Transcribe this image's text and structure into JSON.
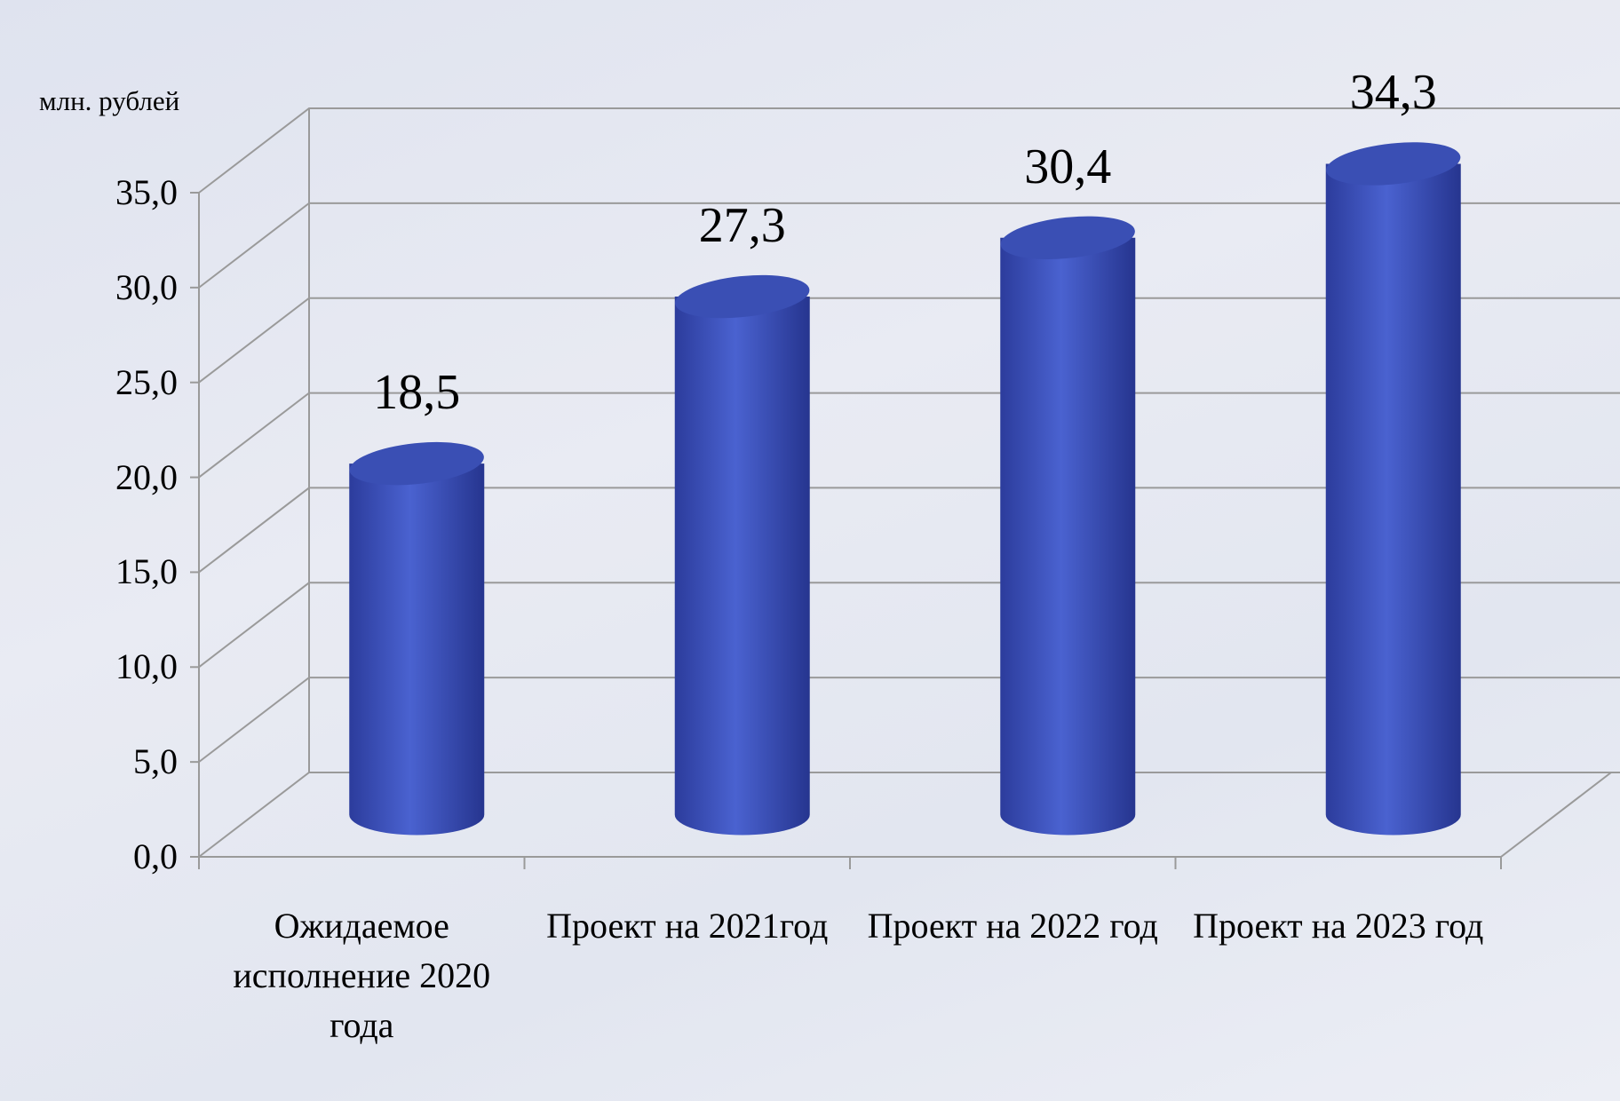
{
  "chart_data": {
    "type": "bar3d",
    "unit_label": "млн. рублей",
    "categories": [
      "Ожидаемое исполнение 2020 года",
      "Проект на 2021год",
      "Проект на 2022 год",
      "Проект на 2023 год"
    ],
    "values": [
      18.5,
      27.3,
      30.4,
      34.3
    ],
    "value_labels": [
      "18,5",
      "27,3",
      "30,4",
      "34,3"
    ],
    "color": "#4a62d0",
    "ylim": [
      0,
      35
    ],
    "yticks": [
      {
        "value": 0,
        "label": "0,0"
      },
      {
        "value": 5,
        "label": "5,0"
      },
      {
        "value": 10,
        "label": "10,0"
      },
      {
        "value": 15,
        "label": "15,0"
      },
      {
        "value": 20,
        "label": "20,0"
      },
      {
        "value": 25,
        "label": "25,0"
      },
      {
        "value": 30,
        "label": "30,0"
      },
      {
        "value": 35,
        "label": "35,0"
      }
    ],
    "grid": true
  }
}
